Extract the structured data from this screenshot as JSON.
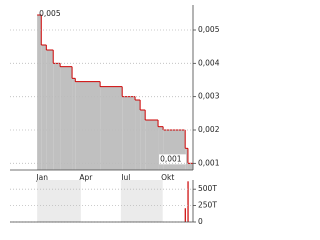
{
  "chart_data": [
    {
      "type": "line",
      "step": "after",
      "series": [
        {
          "color": "#cc0000",
          "fill": "#c0c0c0",
          "x": [
            0,
            9,
            20,
            35,
            50,
            76,
            83,
            137,
            185,
            213,
            224,
            235,
            263,
            274,
            322,
            328,
            337
          ],
          "values": [
            0.00545,
            0.00455,
            0.0044,
            0.004,
            0.0039,
            0.00355,
            0.00345,
            0.0033,
            0.003,
            0.0029,
            0.0026,
            0.0023,
            0.0021,
            0.002,
            0.00145,
            0.001,
            0.001
          ]
        }
      ],
      "max_label": "0,005",
      "min_label": "0,001",
      "xlim": [
        -59,
        339
      ],
      "xticks": [
        {
          "value": 11,
          "label": "Jan"
        },
        {
          "value": 106,
          "label": "Apr"
        },
        {
          "value": 193,
          "label": "Jul"
        },
        {
          "value": 284,
          "label": "Okt"
        }
      ],
      "ylim": [
        0.0008,
        0.00575
      ],
      "yticks": [
        {
          "value": 0.001,
          "label": "0,001"
        },
        {
          "value": 0.002,
          "label": "0,002"
        },
        {
          "value": 0.003,
          "label": "0,003"
        },
        {
          "value": 0.004,
          "label": "0,004"
        },
        {
          "value": 0.005,
          "label": "0,005"
        }
      ],
      "grid": true
    },
    {
      "type": "bar",
      "color": "#cc0000",
      "x": [
        322,
        328
      ],
      "values": [
        210000,
        620000
      ],
      "xlim": [
        -59,
        339
      ],
      "ylim": [
        0,
        640000
      ],
      "yticks": [
        0,
        {
          "value": 250000,
          "label": "250T"
        },
        {
          "value": 500000,
          "label": "500T"
        }
      ],
      "grid": true
    }
  ]
}
